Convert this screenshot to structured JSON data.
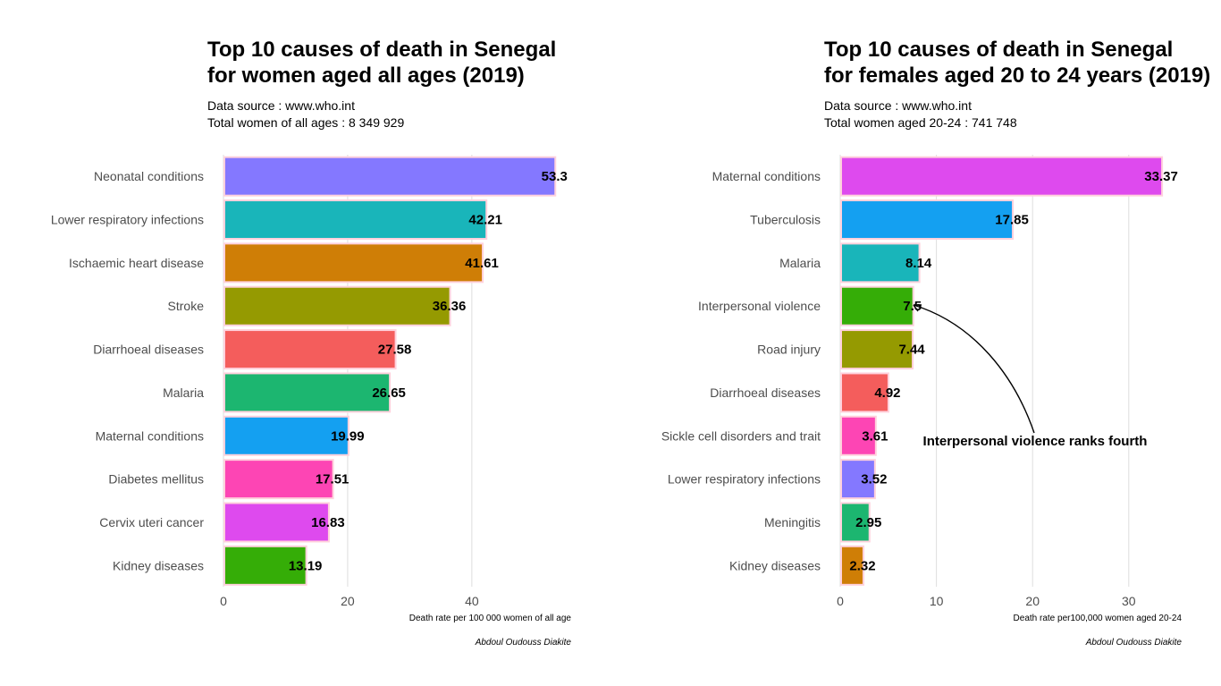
{
  "chart_data": [
    {
      "type": "bar",
      "orientation": "horizontal",
      "title_line1": "Top 10 causes of death in Senegal",
      "title_line2": "for women aged all ages (2019)",
      "subtitle_line1": "Data source : www.who.int",
      "subtitle_line2": "Total women of all ages : 8 349 929",
      "categories": [
        "Neonatal conditions",
        "Lower respiratory infections",
        "Ischaemic heart disease",
        "Stroke",
        "Diarrhoeal diseases",
        "Malaria",
        "Maternal conditions",
        "Diabetes mellitus",
        "Cervix uteri cancer",
        "Kidney diseases"
      ],
      "values": [
        53.3,
        42.21,
        41.61,
        36.36,
        27.58,
        26.65,
        19.99,
        17.51,
        16.83,
        13.19
      ],
      "value_labels": [
        "53.3",
        "42.21",
        "41.61",
        "36.36",
        "27.58",
        "26.65",
        "19.99",
        "17.51",
        "16.83",
        "13.19"
      ],
      "colors": [
        "#8478FF",
        "#19B5BA",
        "#CF7E06",
        "#959A01",
        "#F45D5C",
        "#1CB670",
        "#14A0F1",
        "#FD45B4",
        "#DE4AEE",
        "#35AD07"
      ],
      "xlabel": "Death rate per 100 000 women of all age",
      "xlim": [
        0,
        56
      ],
      "xticks": [
        0,
        20,
        40
      ],
      "xtick_labels": [
        "0",
        "20",
        "40"
      ],
      "caption": "Abdoul Oudouss Diakite",
      "grid": "vertical major gridlines"
    },
    {
      "type": "bar",
      "orientation": "horizontal",
      "title_line1": "Top 10 causes of death in Senegal",
      "title_line2": "for females aged 20 to 24 years (2019)",
      "subtitle_line1": "Data source : www.who.int",
      "subtitle_line2": "Total women aged 20-24 : 741 748",
      "categories": [
        "Maternal conditions",
        "Tuberculosis",
        "Malaria",
        "Interpersonal violence",
        "Road injury",
        "Diarrhoeal diseases",
        "Sickle cell disorders and trait",
        "Lower respiratory infections",
        "Meningitis",
        "Kidney diseases"
      ],
      "values": [
        33.37,
        17.85,
        8.14,
        7.5,
        7.44,
        4.92,
        3.61,
        3.52,
        2.95,
        2.32
      ],
      "value_labels": [
        "33.37",
        "17.85",
        "8.14",
        "7.5",
        "7.44",
        "4.92",
        "3.61",
        "3.52",
        "2.95",
        "2.32"
      ],
      "colors": [
        "#DE4AEE",
        "#14A0F1",
        "#19B5BA",
        "#35AD07",
        "#959A01",
        "#F45D5C",
        "#FD45B4",
        "#8478FF",
        "#1CB670",
        "#CF7E06"
      ],
      "xlabel": "Death rate per100,000 women aged 20-24",
      "xlim": [
        0,
        35.5
      ],
      "xticks": [
        0,
        10,
        20,
        30
      ],
      "xtick_labels": [
        "0",
        "10",
        "20",
        "30"
      ],
      "caption": "Abdoul Oudouss Diakite",
      "grid": "vertical major gridlines",
      "annotation": {
        "text": "Interpersonal violence ranks fourth",
        "target_category": "Interpersonal violence"
      }
    }
  ],
  "colors": {
    "bar_outline": "#FFD1DC",
    "gridline": "#DEDEDE",
    "axis_text": "#4D4D4D"
  }
}
